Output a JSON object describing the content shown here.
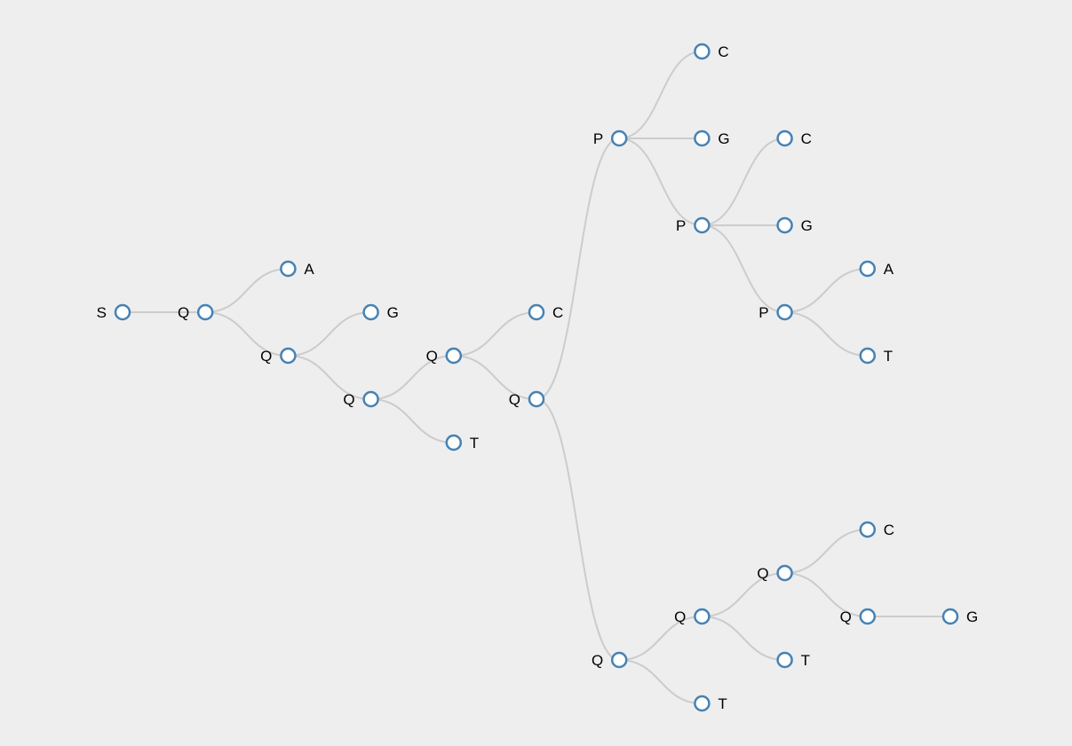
{
  "tree": {
    "label": "S",
    "children": [
      {
        "label": "Q",
        "children": [
          {
            "label": "A"
          },
          {
            "label": "Q",
            "children": [
              {
                "label": "G"
              },
              {
                "label": "Q",
                "children": [
                  {
                    "label": "Q",
                    "children": [
                      {
                        "label": "C"
                      },
                      {
                        "label": "Q",
                        "children": [
                          {
                            "label": "P",
                            "children": [
                              {
                                "label": "C"
                              },
                              {
                                "label": "G"
                              },
                              {
                                "label": "P",
                                "children": [
                                  {
                                    "label": "C"
                                  },
                                  {
                                    "label": "G"
                                  },
                                  {
                                    "label": "P",
                                    "children": [
                                      {
                                        "label": "A"
                                      },
                                      {
                                        "label": "T"
                                      }
                                    ]
                                  }
                                ]
                              }
                            ]
                          },
                          {
                            "label": "Q",
                            "children": [
                              {
                                "label": "Q",
                                "children": [
                                  {
                                    "label": "Q",
                                    "children": [
                                      {
                                        "label": "C"
                                      },
                                      {
                                        "label": "Q",
                                        "children": [
                                          {
                                            "label": "G"
                                          }
                                        ]
                                      }
                                    ]
                                  },
                                  {
                                    "label": "T"
                                  }
                                ]
                              },
                              {
                                "label": "T"
                              }
                            ]
                          }
                        ]
                      }
                    ]
                  },
                  {
                    "label": "T"
                  }
                ]
              }
            ]
          }
        ]
      }
    ]
  },
  "colors": {
    "background": "#eeeeee",
    "link": "#cccccc",
    "node_stroke": "#4682b4",
    "node_fill": "#ffffff",
    "label": "#000000"
  }
}
